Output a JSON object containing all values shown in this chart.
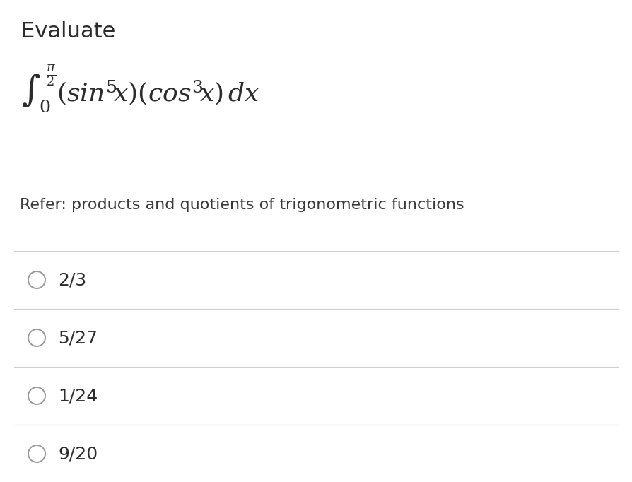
{
  "title": "Evaluate",
  "integral_latex": "$\\displaystyle\\int_0^{\\frac{\\pi}{2}} (\\mathit{sin}^5 x)(\\mathit{cos}^3 x)dx$",
  "refer_text": "Refer: products and quotients of trigonometric functions",
  "options": [
    "2/3",
    "5/27",
    "1/24",
    "9/20"
  ],
  "bg_color": "#ffffff",
  "title_color": "#2c2c2c",
  "integral_color": "#2c2c2c",
  "refer_color": "#3a3a3a",
  "option_color": "#2c2c2c",
  "line_color": "#d0d0d0",
  "circle_color": "#999999",
  "title_fontsize": 22,
  "integral_fontsize": 26,
  "refer_fontsize": 16,
  "option_fontsize": 18
}
